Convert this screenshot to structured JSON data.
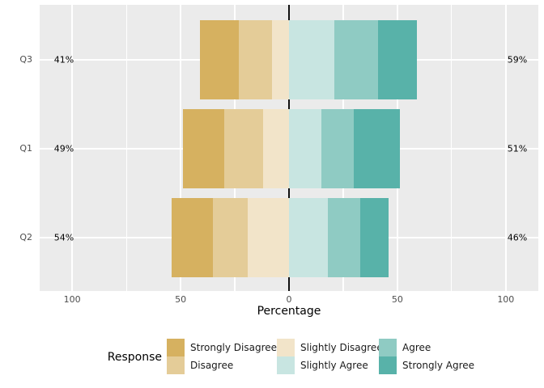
{
  "chart_data": {
    "type": "bar",
    "variant": "diverging-stacked-likert",
    "title": "",
    "xlabel": "Percentage",
    "ylabel": "",
    "categories": [
      "Q3",
      "Q1",
      "Q2"
    ],
    "series": [
      {
        "name": "Strongly Disagree",
        "color": "#d6b160",
        "values": [
          18,
          19,
          19
        ]
      },
      {
        "name": "Disagree",
        "color": "#e4cc98",
        "values": [
          15,
          18,
          16
        ]
      },
      {
        "name": "Slightly Disagree",
        "color": "#f2e4c9",
        "values": [
          8,
          12,
          19
        ]
      },
      {
        "name": "Slightly Agree",
        "color": "#c8e5e1",
        "values": [
          21,
          15,
          18
        ]
      },
      {
        "name": "Agree",
        "color": "#8fcbc3",
        "values": [
          20,
          15,
          15
        ]
      },
      {
        "name": "Strongly Agree",
        "color": "#58b2a9",
        "values": [
          18,
          21,
          13
        ]
      }
    ],
    "left_side_series": [
      "Slightly Disagree",
      "Disagree",
      "Strongly Disagree"
    ],
    "right_side_series": [
      "Slightly Agree",
      "Agree",
      "Strongly Agree"
    ],
    "left_totals": [
      "41%",
      "49%",
      "54%"
    ],
    "right_totals": [
      "59%",
      "51%",
      "46%"
    ],
    "x_tick_labels": [
      "100",
      "50",
      "0",
      "50",
      "100"
    ],
    "x_tick_values": [
      -100,
      -50,
      0,
      50,
      100
    ],
    "x_minor_values": [
      -75,
      -25,
      25,
      75
    ],
    "xlim": [
      -115,
      115
    ],
    "grid": true,
    "zero_reference_line": true,
    "legend_title": "Response",
    "legend_position": "bottom",
    "legend_columns": [
      [
        "Strongly Disagree",
        "Disagree"
      ],
      [
        "Slightly Disagree",
        "Slightly Agree"
      ],
      [
        "Agree",
        "Strongly Agree"
      ]
    ],
    "colors": {
      "panel_background": "#ebebeb",
      "gridline": "#ffffff",
      "zero_line": "#111111",
      "axis_text": "#4d4d4d",
      "annotation_text": "#000000"
    }
  }
}
